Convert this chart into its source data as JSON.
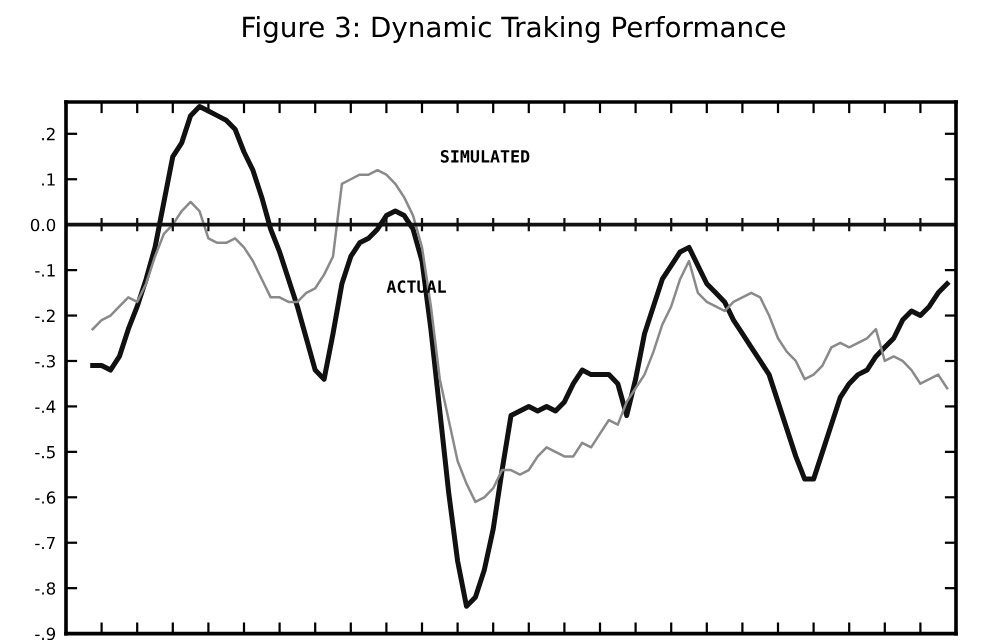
{
  "chart_data": {
    "type": "line",
    "title": "Figure 3: Dynamic Traking Performance",
    "categories": [
      null,
      null,
      null,
      null,
      null,
      null,
      null,
      null,
      null,
      null,
      null,
      null,
      null,
      null,
      null,
      null,
      null,
      null,
      null,
      null,
      null,
      null,
      null,
      null,
      null,
      null,
      null,
      null,
      null,
      null,
      null,
      null,
      null,
      null,
      null,
      null,
      null,
      null,
      null,
      null,
      null,
      null,
      null,
      null,
      null,
      null,
      null,
      null,
      null,
      null,
      null,
      null,
      null,
      null,
      null,
      null,
      null,
      null,
      null,
      null,
      null,
      null,
      null,
      null,
      null,
      null,
      null,
      null,
      null,
      null,
      null,
      null,
      null,
      null,
      null,
      null,
      null,
      null,
      null,
      null,
      null,
      null,
      null,
      null,
      null,
      null,
      null,
      null,
      null,
      null,
      null,
      null,
      null,
      null,
      null,
      null,
      null
    ],
    "ylim": [
      -0.9,
      0.27
    ],
    "yticks": [
      {
        "value": 0.2,
        "label": ".2"
      },
      {
        "value": 0.1,
        "label": ".1"
      },
      {
        "value": 0,
        "label": "0.0"
      },
      {
        "value": -0.1,
        "label": "-.1"
      },
      {
        "value": -0.2,
        "label": "-.2"
      },
      {
        "value": -0.3,
        "label": "-.3"
      },
      {
        "value": -0.4,
        "label": "-.4"
      },
      {
        "value": -0.5,
        "label": "-.5"
      },
      {
        "value": -0.6,
        "label": "-.6"
      },
      {
        "value": -0.7,
        "label": "-.7"
      },
      {
        "value": -0.8,
        "label": "-.8"
      },
      {
        "value": -0.9,
        "label": "-.9"
      }
    ],
    "tick_labels": "y",
    "grid": false,
    "legend": false,
    "marker": "none",
    "line_style": "solid",
    "ref_lines": [
      {
        "axis": "y",
        "value": 0,
        "color": "#111111"
      }
    ],
    "annotations": [
      "SIMULATED",
      "ACTUAL"
    ],
    "series": [
      {
        "color": "#111111",
        "values": [
          -0.31,
          -0.31,
          -0.32,
          -0.29,
          -0.23,
          -0.18,
          -0.12,
          -0.05,
          0.05,
          0.15,
          0.18,
          0.24,
          0.26,
          0.25,
          0.24,
          0.23,
          0.21,
          0.16,
          0.12,
          0.06,
          -0.01,
          -0.06,
          -0.12,
          -0.18,
          -0.25,
          -0.32,
          -0.34,
          -0.24,
          -0.13,
          -0.07,
          -0.04,
          -0.03,
          -0.01,
          0.02,
          0.03,
          0.02,
          -0.01,
          -0.08,
          -0.23,
          -0.41,
          -0.59,
          -0.74,
          -0.84,
          -0.82,
          -0.76,
          -0.67,
          -0.54,
          -0.42,
          -0.41,
          -0.4,
          -0.41,
          -0.4,
          -0.41,
          -0.39,
          -0.35,
          -0.32,
          -0.33,
          -0.33,
          -0.33,
          -0.35,
          -0.42,
          -0.34,
          -0.24,
          -0.18,
          -0.12,
          -0.09,
          -0.06,
          -0.05,
          -0.09,
          -0.13,
          -0.15,
          -0.17,
          -0.21,
          -0.24,
          -0.27,
          -0.3,
          -0.33,
          -0.39,
          -0.45,
          -0.51,
          -0.56,
          -0.56,
          -0.5,
          -0.44,
          -0.38,
          -0.35,
          -0.33,
          -0.32,
          -0.29,
          -0.27,
          -0.25,
          -0.21,
          -0.19,
          -0.2,
          -0.18,
          -0.15,
          -0.13
        ]
      },
      {
        "color": "#8a8a8a",
        "values": [
          -0.23,
          -0.21,
          -0.2,
          -0.18,
          -0.16,
          -0.17,
          -0.13,
          -0.07,
          -0.02,
          0.0,
          0.03,
          0.05,
          0.03,
          -0.03,
          -0.04,
          -0.04,
          -0.03,
          -0.05,
          -0.08,
          -0.12,
          -0.16,
          -0.16,
          -0.17,
          -0.17,
          -0.15,
          -0.14,
          -0.11,
          -0.07,
          0.09,
          0.1,
          0.11,
          0.11,
          0.12,
          0.11,
          0.09,
          0.06,
          0.02,
          -0.05,
          -0.18,
          -0.34,
          -0.43,
          -0.52,
          -0.57,
          -0.61,
          -0.6,
          -0.58,
          -0.54,
          -0.54,
          -0.55,
          -0.54,
          -0.51,
          -0.49,
          -0.5,
          -0.51,
          -0.51,
          -0.48,
          -0.49,
          -0.46,
          -0.43,
          -0.44,
          -0.39,
          -0.36,
          -0.33,
          -0.28,
          -0.22,
          -0.18,
          -0.12,
          -0.08,
          -0.15,
          -0.17,
          -0.18,
          -0.19,
          -0.17,
          -0.16,
          -0.15,
          -0.16,
          -0.2,
          -0.25,
          -0.28,
          -0.3,
          -0.34,
          -0.33,
          -0.31,
          -0.27,
          -0.26,
          -0.27,
          -0.26,
          -0.25,
          -0.23,
          -0.3,
          -0.29,
          -0.3,
          -0.32,
          -0.35,
          -0.34,
          -0.33,
          -0.36
        ]
      }
    ]
  }
}
